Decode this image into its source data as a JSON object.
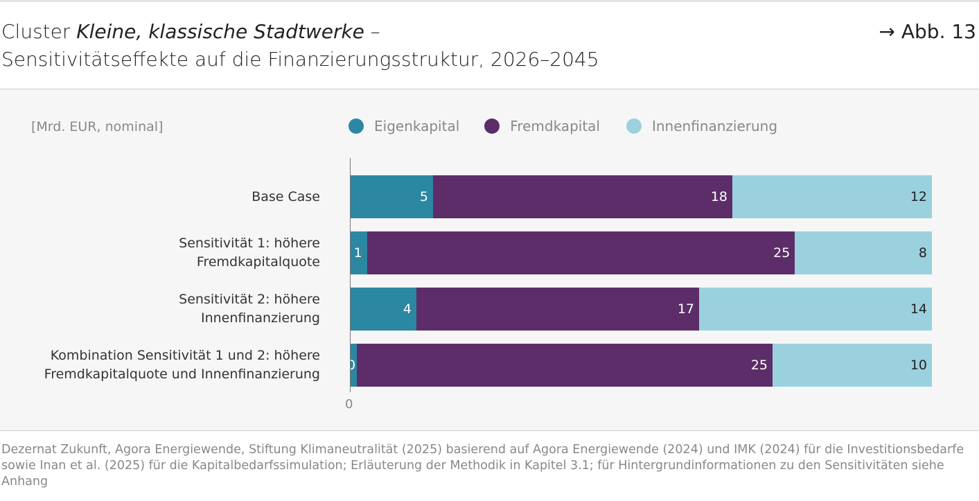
{
  "header": {
    "title_prefix": "Cluster ",
    "title_italic": "Kleine, klassische Stadtwerke",
    "title_suffix": " –",
    "title_line2": "Sensitivitätseffekte auf die Finanzierungsstruktur, 2026–2045",
    "figure_ref": "→ Abb. 13"
  },
  "chart_data": {
    "type": "bar",
    "orientation": "horizontal",
    "stacked": "100%",
    "unit_label": "[Mrd. EUR, nominal]",
    "categories": [
      [
        "Base Case"
      ],
      [
        "Sensitivität 1: höhere",
        "Fremdkapitalquote"
      ],
      [
        "Sensitivität 2: höhere",
        "Innenfinanzierung"
      ],
      [
        "Kombination Sensitivität 1 und 2: höhere",
        "Fremdkapitalquote und Innenfinanzierung"
      ]
    ],
    "series": [
      {
        "name": "Eigenkapital",
        "color": "#2c87a2",
        "values": [
          5,
          1,
          4,
          0
        ]
      },
      {
        "name": "Fremdkapital",
        "color": "#5c2d69",
        "values": [
          18,
          25,
          17,
          25
        ]
      },
      {
        "name": "Innenfinanzierung",
        "color": "#9bd1de",
        "values": [
          12,
          8,
          14,
          10
        ]
      }
    ],
    "x_tick_labels": [
      "0"
    ],
    "legend": "top"
  },
  "source": "Dezernat Zukunft, Agora Energiewende, Stiftung Klimaneutralität (2025) basierend auf Agora Energiewende (2024) und IMK (2024) für die Investitionsbedarfe sowie Inan et al. (2025) für die Kapitalbedarfssimulation; Erläuterung der Methodik in Kapitel 3.1; für Hintergrundinformationen zu den Sensitivitäten siehe Anhang"
}
